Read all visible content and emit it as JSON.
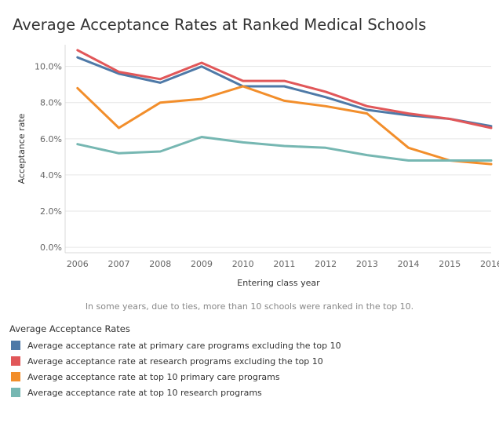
{
  "chart_data": {
    "type": "line",
    "title": "Average Acceptance Rates at Ranked Medical Schools",
    "xlabel": "Entering class year",
    "ylabel": "Acceptance rate",
    "x": [
      2006,
      2007,
      2008,
      2009,
      2010,
      2011,
      2012,
      2013,
      2014,
      2015,
      2016
    ],
    "x_tick_labels": [
      "2006",
      "2007",
      "2008",
      "2009",
      "2010",
      "2011",
      "2012",
      "2013",
      "2014",
      "2015",
      "2016"
    ],
    "y_ticks": [
      0,
      2,
      4,
      6,
      8,
      10
    ],
    "y_tick_labels": [
      "0.0%",
      "2.0%",
      "4.0%",
      "6.0%",
      "8.0%",
      "10.0%"
    ],
    "ylim": [
      -0.3,
      11.2
    ],
    "xlim": [
      2005.7,
      2016.0
    ],
    "grid": {
      "horizontal": true,
      "vertical": false
    },
    "note": "In some years, due to ties, more than 10 schools were ranked in the top 10.",
    "legend": {
      "title": "Average Acceptance Rates",
      "placement": "bottom-left"
    },
    "series": [
      {
        "name": "Average acceptance rate at primary care programs excluding the top 10",
        "color": "#4e79a7",
        "values": [
          10.5,
          9.6,
          9.1,
          10.0,
          8.9,
          8.9,
          8.3,
          7.6,
          7.3,
          7.1,
          6.7
        ]
      },
      {
        "name": "Average acceptance rate at research programs excluding the top 10",
        "color": "#e15759",
        "values": [
          10.9,
          9.7,
          9.3,
          10.2,
          9.2,
          9.2,
          8.6,
          7.8,
          7.4,
          7.1,
          6.6
        ]
      },
      {
        "name": "Average acceptance rate at top 10 primary care programs",
        "color": "#f28e2b",
        "values": [
          8.8,
          6.6,
          8.0,
          8.2,
          8.9,
          8.1,
          7.8,
          7.4,
          5.5,
          4.8,
          4.6
        ]
      },
      {
        "name": "Average acceptance rate at top 10 research programs",
        "color": "#76b7b2",
        "values": [
          5.7,
          5.2,
          5.3,
          6.1,
          5.8,
          5.6,
          5.5,
          5.1,
          4.8,
          4.8,
          4.8
        ]
      }
    ]
  }
}
